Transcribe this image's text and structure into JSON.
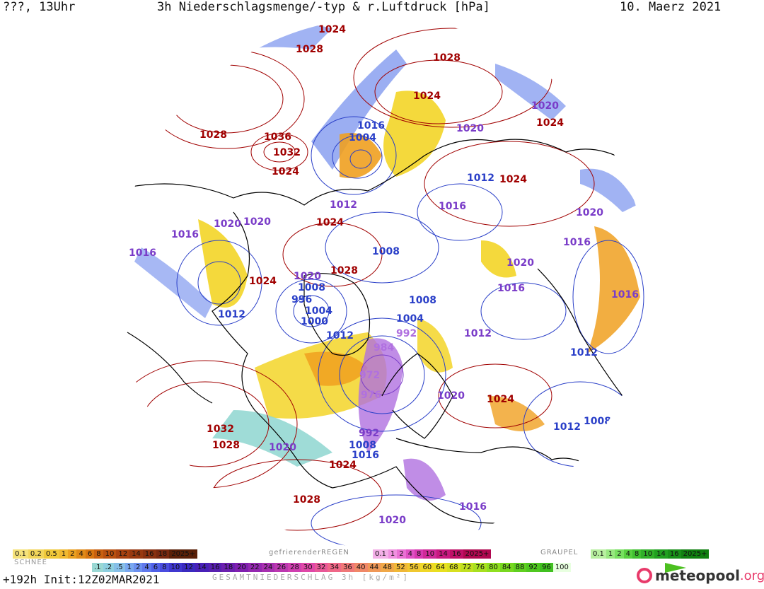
{
  "header": {
    "left": "???, 13Uhr",
    "title": "3h Niederschlagsmenge/-typ & r.Luftdruck [hPa]",
    "date": "10. Maerz 2021"
  },
  "isobar_labels": {
    "high": [
      {
        "text": "1024"
      },
      {
        "text": "1028"
      },
      {
        "text": "1028"
      },
      {
        "text": "1024"
      },
      {
        "text": "1028"
      },
      {
        "text": "1036"
      },
      {
        "text": "1032"
      },
      {
        "text": "1024"
      },
      {
        "text": "1024"
      },
      {
        "text": "1024"
      },
      {
        "text": "1024"
      },
      {
        "text": "1028"
      },
      {
        "text": "1024"
      },
      {
        "text": "1032"
      },
      {
        "text": "1028"
      },
      {
        "text": "1024"
      },
      {
        "text": "1028"
      },
      {
        "text": "1024"
      }
    ],
    "low": [
      {
        "text": "1016"
      },
      {
        "text": "1004"
      },
      {
        "text": "1020"
      },
      {
        "text": "1020"
      },
      {
        "text": "1012"
      },
      {
        "text": "1016"
      },
      {
        "text": "1020"
      },
      {
        "text": "1016"
      },
      {
        "text": "1016"
      },
      {
        "text": "1020"
      },
      {
        "text": "1020"
      },
      {
        "text": "1008"
      },
      {
        "text": "1012"
      },
      {
        "text": "1020"
      },
      {
        "text": "1008"
      },
      {
        "text": "996"
      },
      {
        "text": "1004"
      },
      {
        "text": "1000"
      },
      {
        "text": "1012"
      },
      {
        "text": "1008"
      },
      {
        "text": "1004"
      },
      {
        "text": "992"
      },
      {
        "text": "984"
      },
      {
        "text": "972"
      },
      {
        "text": "976"
      },
      {
        "text": "1012"
      },
      {
        "text": "1016"
      },
      {
        "text": "1020"
      },
      {
        "text": "1016"
      },
      {
        "text": "1012"
      },
      {
        "text": "1008"
      },
      {
        "text": "1020"
      },
      {
        "text": "1008"
      },
      {
        "text": "1016"
      },
      {
        "text": "1020"
      },
      {
        "text": "1016"
      },
      {
        "text": "1012"
      },
      {
        "text": "1016"
      },
      {
        "text": "1020"
      },
      {
        "text": "1012"
      },
      {
        "text": "992"
      }
    ]
  },
  "legend": {
    "snow_label": "SCHNEE",
    "snow": [
      "0.1",
      "0.2",
      "0.5",
      "1",
      "2",
      "4",
      "6",
      "8",
      "10",
      "12",
      "14",
      "16",
      "18",
      "2025+"
    ],
    "freezing_label": "gefrierenderREGEN",
    "freezing": [
      "0.1",
      "1",
      "2",
      "4",
      "8",
      "10",
      "14",
      "16",
      "2025+"
    ],
    "graupel_label": "GRAUPEL",
    "graupel": [
      "0.1",
      "1",
      "2",
      "4",
      "8",
      "10",
      "14",
      "16",
      "2025+"
    ],
    "total": [
      ".1",
      ".2",
      ".5",
      "1",
      "2",
      "4",
      "6",
      "8",
      "10",
      "12",
      "14",
      "16",
      "18",
      "20",
      "22",
      "24",
      "26",
      "28",
      "30",
      "32",
      "34",
      "36",
      "40",
      "44",
      "48",
      "52",
      "56",
      "60",
      "64",
      "68",
      "72",
      "76",
      "80",
      "84",
      "88",
      "92",
      "96",
      "100"
    ]
  },
  "footer": {
    "run": "+192h Init:12Z02MAR2021",
    "axis": "GESAMTNIEDERSCHLAG 3h [kg/m²]",
    "logo": "meteopool",
    "logo_tld": ".org"
  },
  "colors": {
    "high": "#a00000",
    "low_blue": "#2a3fc8",
    "low_violet": "#7a3cc8",
    "snow_yellow": "#f2d21a",
    "snow_orange": "#f0a020",
    "rain_blue": "#8aa0f0",
    "rain_violet": "#b070e0",
    "cyan": "#8ed6d0"
  }
}
